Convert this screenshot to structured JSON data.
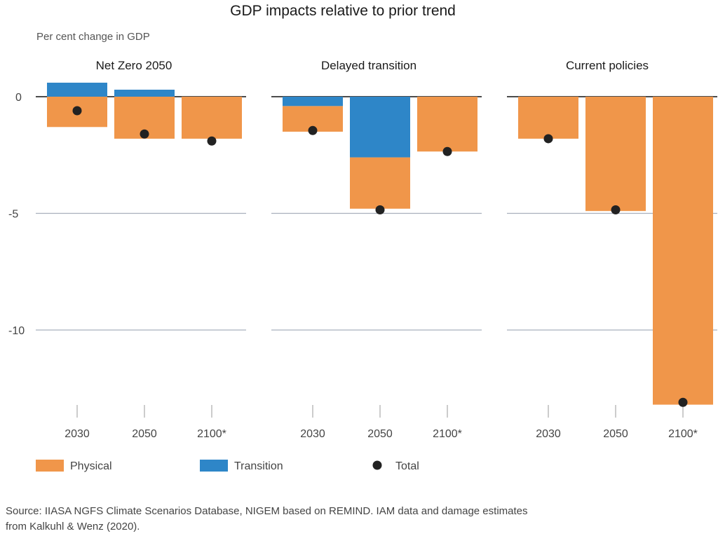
{
  "title": "GDP impacts relative to prior trend",
  "ylabel": "Per cent change in GDP",
  "source_lines": [
    "Source: IIASA NGFS Climate Scenarios Database, NIGEM based on REMIND. IAM data and damage estimates",
    "from Kalkuhl & Wenz (2020)."
  ],
  "colors": {
    "physical": "#f0964a",
    "transition": "#2e86c8",
    "total": "#222222",
    "grid": "#a9b0bd"
  },
  "legend": [
    {
      "key": "physical",
      "label": "Physical"
    },
    {
      "key": "transition",
      "label": "Transition"
    },
    {
      "key": "total",
      "label": "Total"
    }
  ],
  "chart_data": {
    "type": "bar",
    "stacked": true,
    "yticks": [
      0,
      -5,
      -10
    ],
    "ylim": [
      1.5,
      -13.5
    ],
    "categories": [
      "2030",
      "2050",
      "2100*"
    ],
    "panels": [
      {
        "title": "Net Zero 2050",
        "bars": [
          {
            "category": "2030",
            "physical": -1.3,
            "transition": 0.6,
            "total": -0.6
          },
          {
            "category": "2050",
            "physical": -1.8,
            "transition": 0.3,
            "total": -1.6
          },
          {
            "category": "2100*",
            "physical": -1.8,
            "transition": 0,
            "total": -1.9
          }
        ]
      },
      {
        "title": "Delayed transition",
        "bars": [
          {
            "category": "2030",
            "physical": -1.1,
            "transition": -0.4,
            "total": -1.45
          },
          {
            "category": "2050",
            "physical": -2.2,
            "transition": -2.6,
            "total": -4.85
          },
          {
            "category": "2100*",
            "physical": -2.35,
            "transition": 0,
            "total": -2.35
          }
        ]
      },
      {
        "title": "Current policies",
        "bars": [
          {
            "category": "2030",
            "physical": -1.8,
            "transition": 0,
            "total": -1.8
          },
          {
            "category": "2050",
            "physical": -4.9,
            "transition": 0,
            "total": -4.85
          },
          {
            "category": "2100*",
            "physical": -13.2,
            "transition": 0,
            "total": -13.1
          }
        ]
      }
    ]
  }
}
